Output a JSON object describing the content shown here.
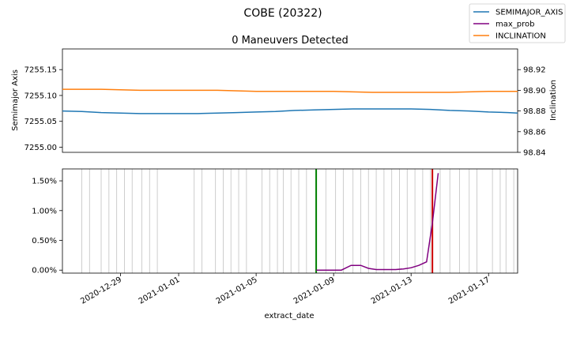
{
  "title": "COBE (20322)",
  "chart_data": [
    {
      "type": "line",
      "title": "0 Maneuvers Detected",
      "ylabel": "Semimajor Axis",
      "y2label": "Inclination",
      "ylim": [
        7254.99,
        7255.19
      ],
      "y2lim": [
        98.84,
        98.94
      ],
      "xlim": [
        "2020-12-26",
        "2021-01-18.5"
      ],
      "yticks": [
        "7255.00",
        "7255.05",
        "7255.10",
        "7255.15"
      ],
      "y2ticks": [
        "98.84",
        "98.86",
        "98.88",
        "98.90",
        "98.92"
      ],
      "series": [
        {
          "name": "SEMIMAJOR_AXIS",
          "color": "#1f77b4",
          "axis": "left",
          "x": [
            "2020-12-26",
            "2020-12-27",
            "2020-12-28",
            "2020-12-29",
            "2020-12-30",
            "2020-12-31",
            "2021-01-01",
            "2021-01-02",
            "2021-01-03",
            "2021-01-04",
            "2021-01-05",
            "2021-01-06",
            "2021-01-07",
            "2021-01-08",
            "2021-01-09",
            "2021-01-10",
            "2021-01-11",
            "2021-01-12",
            "2021-01-13",
            "2021-01-14",
            "2021-01-15",
            "2021-01-16",
            "2021-01-17",
            "2021-01-18",
            "2021-01-18.5"
          ],
          "values": [
            7255.07,
            7255.069,
            7255.067,
            7255.066,
            7255.065,
            7255.065,
            7255.065,
            7255.065,
            7255.066,
            7255.067,
            7255.068,
            7255.069,
            7255.071,
            7255.072,
            7255.073,
            7255.074,
            7255.074,
            7255.074,
            7255.074,
            7255.073,
            7255.071,
            7255.07,
            7255.068,
            7255.067,
            7255.066
          ]
        },
        {
          "name": "INCLINATION",
          "color": "#ff7f0e",
          "axis": "right",
          "x": [
            "2020-12-26",
            "2020-12-28",
            "2020-12-30",
            "2021-01-01",
            "2021-01-03",
            "2021-01-05",
            "2021-01-07",
            "2021-01-09",
            "2021-01-11",
            "2021-01-13",
            "2021-01-15",
            "2021-01-17",
            "2021-01-18.5"
          ],
          "values": [
            98.901,
            98.901,
            98.9,
            98.9,
            98.9,
            98.899,
            98.899,
            98.899,
            98.898,
            98.898,
            98.898,
            98.899,
            98.899
          ]
        }
      ]
    },
    {
      "type": "line",
      "xlabel": "extract_date",
      "ylim": [
        -0.0005,
        0.017
      ],
      "xlim": [
        "2020-12-26",
        "2021-01-18.5"
      ],
      "yticks": [
        "0.00%",
        "0.50%",
        "1.00%",
        "1.50%"
      ],
      "xticks": [
        "2020-12-29",
        "2021-01-01",
        "2021-01-05",
        "2021-01-09",
        "2021-01-13",
        "2021-01-17"
      ],
      "series": [
        {
          "name": "max_prob",
          "color": "#800080",
          "x": [
            "2021-01-08.1",
            "2021-01-08.5",
            "2021-01-09",
            "2021-01-09.4",
            "2021-01-09.9",
            "2021-01-10.4",
            "2021-01-10.8",
            "2021-01-11.2",
            "2021-01-11.7",
            "2021-01-12.2",
            "2021-01-12.6",
            "2021-01-13",
            "2021-01-13.4",
            "2021-01-13.8",
            "2021-01-14.1",
            "2021-01-14.4"
          ],
          "values": [
            0.0,
            0.0,
            0.0,
            0.0,
            0.0008,
            0.0008,
            0.0003,
            0.0001,
            0.0001,
            0.0001,
            0.0002,
            0.0004,
            0.0008,
            0.0014,
            0.008,
            0.0163
          ]
        }
      ],
      "observation_dates": [
        "2020-12-27",
        "2020-12-27.4",
        "2020-12-28",
        "2020-12-28.4",
        "2020-12-28.8",
        "2020-12-29.2",
        "2020-12-29.6",
        "2020-12-30.1",
        "2020-12-30.5",
        "2020-12-30.9",
        "2021-01-01.8",
        "2021-01-02.2",
        "2021-01-02.9",
        "2021-01-03.3",
        "2021-01-03.7",
        "2021-01-04.1",
        "2021-01-04.5",
        "2021-01-05.3",
        "2021-01-05.7",
        "2021-01-06.1",
        "2021-01-06.4",
        "2021-01-06.8",
        "2021-01-07.2",
        "2021-01-07.6",
        "2021-01-08.6",
        "2021-01-09.1",
        "2021-01-09.5",
        "2021-01-10",
        "2021-01-10.4",
        "2021-01-10.8",
        "2021-01-11.2",
        "2021-01-11.6",
        "2021-01-12",
        "2021-01-12.4",
        "2021-01-12.8",
        "2021-01-13.2",
        "2021-01-13.6",
        "2021-01-14",
        "2021-01-14.5",
        "2021-01-15",
        "2021-01-15.5",
        "2021-01-16",
        "2021-01-16.4",
        "2021-01-17.2",
        "2021-01-17.6",
        "2021-01-17.9",
        "2021-01-18.3"
      ],
      "marker_lines": [
        {
          "x": "2021-01-08.1",
          "color": "#008000"
        },
        {
          "x": "2021-01-14.1",
          "color": "#cc0000"
        }
      ]
    }
  ],
  "legend": {
    "placement": "top-right",
    "items": [
      {
        "label": "SEMIMAJOR_AXIS",
        "color": "#1f77b4"
      },
      {
        "label": "max_prob",
        "color": "#800080"
      },
      {
        "label": "INCLINATION",
        "color": "#ff7f0e"
      }
    ]
  }
}
